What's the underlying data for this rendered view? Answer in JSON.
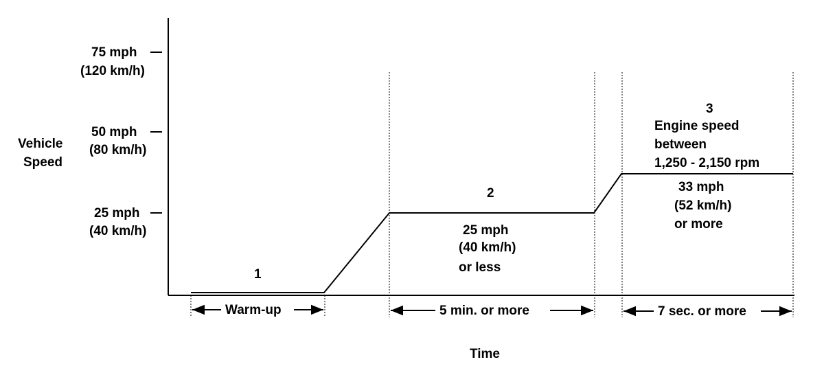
{
  "y_axis": {
    "title_line1": "Vehicle",
    "title_line2": "Speed",
    "ticks": [
      {
        "mph": "75 mph",
        "kmh": "(120 km/h)"
      },
      {
        "mph": "50 mph",
        "kmh": "(80 km/h)"
      },
      {
        "mph": "25 mph",
        "kmh": "(40 km/h)"
      }
    ]
  },
  "x_axis": {
    "title": "Time"
  },
  "phases": [
    {
      "number": "1",
      "duration": "Warm-up",
      "lines": []
    },
    {
      "number": "2",
      "duration": "5 min. or more",
      "lines": [
        "25 mph",
        "(40 km/h)",
        "or less"
      ]
    },
    {
      "number": "3",
      "duration": "7 sec. or more",
      "header": [
        "Engine speed",
        "between",
        "1,250 - 2,150 rpm"
      ],
      "lines": [
        "33 mph",
        "(52 km/h)",
        "or more"
      ]
    }
  ]
}
